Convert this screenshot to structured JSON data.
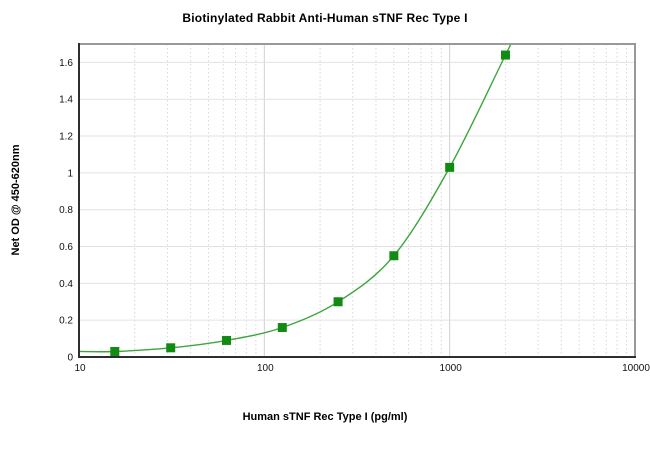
{
  "chart_data": {
    "type": "line",
    "title": "Biotinylated Rabbit Anti-Human sTNF Rec Type I",
    "xlabel": "Human sTNF Rec Type I (pg/ml)",
    "ylabel": "Net OD @ 450-620nm",
    "x_scale": "log",
    "xlim": [
      10,
      10000
    ],
    "ylim": [
      0,
      1.7
    ],
    "x": [
      15.6,
      31.25,
      62.5,
      125,
      250,
      500,
      1000,
      2000
    ],
    "y": [
      0.03,
      0.05,
      0.09,
      0.16,
      0.3,
      0.55,
      1.03,
      1.64
    ],
    "x_ticks": [
      {
        "v": 10,
        "label": "10"
      },
      {
        "v": 100,
        "label": "100"
      },
      {
        "v": 1000,
        "label": "1000"
      },
      {
        "v": 10000,
        "label": "10000"
      }
    ],
    "y_ticks": [
      {
        "v": 0,
        "label": "0"
      },
      {
        "v": 0.2,
        "label": "0.2"
      },
      {
        "v": 0.4,
        "label": "0.4"
      },
      {
        "v": 0.6,
        "label": "0.6"
      },
      {
        "v": 0.8,
        "label": "0.8"
      },
      {
        "v": 1,
        "label": "1"
      },
      {
        "v": 1.2,
        "label": "1.2"
      },
      {
        "v": 1.4,
        "label": "1.4"
      },
      {
        "v": 1.6,
        "label": "1.6"
      }
    ],
    "grid": true,
    "legend": null,
    "marker": "square",
    "marker_size": 9,
    "colors": {
      "line": "#3ca53c",
      "marker": "#128b12",
      "grid_major": "#e2e2e2",
      "grid_minor": "#d8d8d8",
      "grid_decade": "#d0d0d0",
      "border": "#999999",
      "axis": "#2e2e2e",
      "tick_text": "#111111"
    }
  }
}
